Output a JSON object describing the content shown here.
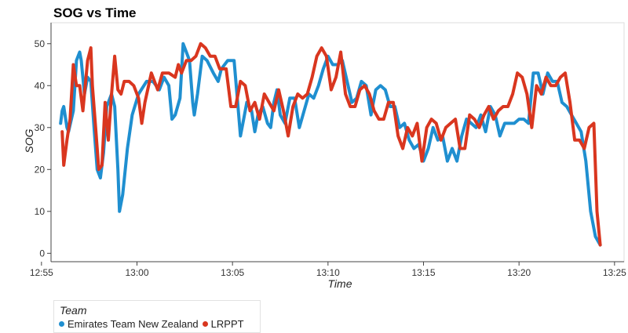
{
  "chart_data": {
    "type": "line",
    "title": "SOG vs Time",
    "xlabel": "Time",
    "ylabel": "SOG",
    "xlim": [
      "12:55:30",
      "13:25:30"
    ],
    "ylim": [
      -2,
      55
    ],
    "x_ticks": [
      "12:55",
      "13:00",
      "13:05",
      "13:10",
      "13:15",
      "13:20",
      "13:25"
    ],
    "y_ticks": [
      0,
      10,
      20,
      30,
      40,
      50
    ],
    "grid": false,
    "legend_title": "Team",
    "legend_position": "bottom-left",
    "series": [
      {
        "name": "Emirates Team New Zealand",
        "color": "#1f8fd0",
        "points": [
          [
            "12:56:00",
            31
          ],
          [
            "12:56:05",
            34
          ],
          [
            "12:56:10",
            35
          ],
          [
            "12:56:20",
            30
          ],
          [
            "12:56:25",
            29
          ],
          [
            "12:56:40",
            34
          ],
          [
            "12:56:50",
            46
          ],
          [
            "12:57:00",
            48
          ],
          [
            "12:57:05",
            46
          ],
          [
            "12:57:15",
            38
          ],
          [
            "12:57:25",
            42
          ],
          [
            "12:57:35",
            41
          ],
          [
            "12:57:45",
            30
          ],
          [
            "12:57:55",
            20
          ],
          [
            "12:58:05",
            18
          ],
          [
            "12:58:15",
            24
          ],
          [
            "12:58:25",
            35
          ],
          [
            "12:58:40",
            38
          ],
          [
            "12:58:50",
            35
          ],
          [
            "12:59:00",
            20
          ],
          [
            "12:59:05",
            10
          ],
          [
            "12:59:15",
            14
          ],
          [
            "12:59:30",
            25
          ],
          [
            "12:59:45",
            33
          ],
          [
            "13:00:05",
            38
          ],
          [
            "13:00:30",
            41
          ],
          [
            "13:00:50",
            41
          ],
          [
            "13:01:10",
            39
          ],
          [
            "13:01:25",
            42
          ],
          [
            "13:01:40",
            40
          ],
          [
            "13:01:50",
            32
          ],
          [
            "13:02:00",
            33
          ],
          [
            "13:02:15",
            37
          ],
          [
            "13:02:25",
            50
          ],
          [
            "13:02:35",
            48
          ],
          [
            "13:02:45",
            46
          ],
          [
            "13:02:55",
            36
          ],
          [
            "13:03:00",
            33
          ],
          [
            "13:03:10",
            38
          ],
          [
            "13:03:25",
            47
          ],
          [
            "13:03:40",
            46
          ],
          [
            "13:04:00",
            43
          ],
          [
            "13:04:15",
            41
          ],
          [
            "13:04:25",
            44
          ],
          [
            "13:04:45",
            46
          ],
          [
            "13:05:05",
            46
          ],
          [
            "13:05:15",
            37
          ],
          [
            "13:05:25",
            28
          ],
          [
            "13:05:35",
            32
          ],
          [
            "13:05:45",
            36
          ],
          [
            "13:06:00",
            34
          ],
          [
            "13:06:10",
            29
          ],
          [
            "13:06:20",
            33
          ],
          [
            "13:06:35",
            35
          ],
          [
            "13:06:50",
            31
          ],
          [
            "13:07:00",
            30
          ],
          [
            "13:07:10",
            36
          ],
          [
            "13:07:20",
            39
          ],
          [
            "13:07:30",
            33
          ],
          [
            "13:07:45",
            31
          ],
          [
            "13:08:00",
            37
          ],
          [
            "13:08:15",
            37
          ],
          [
            "13:08:30",
            30
          ],
          [
            "13:08:45",
            34
          ],
          [
            "13:09:00",
            38
          ],
          [
            "13:09:15",
            37
          ],
          [
            "13:09:30",
            40
          ],
          [
            "13:09:45",
            44
          ],
          [
            "13:10:00",
            47
          ],
          [
            "13:10:15",
            45
          ],
          [
            "13:10:30",
            45
          ],
          [
            "13:10:45",
            46
          ],
          [
            "13:11:00",
            41
          ],
          [
            "13:11:15",
            36
          ],
          [
            "13:11:30",
            37
          ],
          [
            "13:11:45",
            41
          ],
          [
            "13:12:00",
            40
          ],
          [
            "13:12:15",
            33
          ],
          [
            "13:12:30",
            39
          ],
          [
            "13:12:45",
            40
          ],
          [
            "13:13:00",
            39
          ],
          [
            "13:13:15",
            35
          ],
          [
            "13:13:30",
            35
          ],
          [
            "13:13:45",
            30
          ],
          [
            "13:14:00",
            31
          ],
          [
            "13:14:15",
            27
          ],
          [
            "13:14:30",
            25
          ],
          [
            "13:14:45",
            26
          ],
          [
            "13:15:00",
            22
          ],
          [
            "13:15:15",
            25
          ],
          [
            "13:15:30",
            30
          ],
          [
            "13:15:45",
            27
          ],
          [
            "13:16:00",
            28
          ],
          [
            "13:16:15",
            22
          ],
          [
            "13:16:30",
            25
          ],
          [
            "13:16:45",
            22
          ],
          [
            "13:17:00",
            28
          ],
          [
            "13:17:15",
            32
          ],
          [
            "13:17:30",
            31
          ],
          [
            "13:17:45",
            30
          ],
          [
            "13:18:00",
            33
          ],
          [
            "13:18:15",
            29
          ],
          [
            "13:18:30",
            35
          ],
          [
            "13:18:45",
            33
          ],
          [
            "13:19:00",
            28
          ],
          [
            "13:19:15",
            31
          ],
          [
            "13:19:30",
            31
          ],
          [
            "13:19:45",
            31
          ],
          [
            "13:20:00",
            32
          ],
          [
            "13:20:15",
            32
          ],
          [
            "13:20:30",
            31
          ],
          [
            "13:20:45",
            43
          ],
          [
            "13:21:00",
            43
          ],
          [
            "13:21:15",
            38
          ],
          [
            "13:21:30",
            43
          ],
          [
            "13:21:45",
            41
          ],
          [
            "13:22:00",
            41
          ],
          [
            "13:22:15",
            36
          ],
          [
            "13:22:30",
            35
          ],
          [
            "13:22:45",
            33
          ],
          [
            "13:23:00",
            31
          ],
          [
            "13:23:15",
            29
          ],
          [
            "13:23:30",
            22
          ],
          [
            "13:23:45",
            10
          ],
          [
            "13:24:00",
            4
          ],
          [
            "13:24:15",
            2
          ]
        ]
      },
      {
        "name": "LRPPT",
        "color": "#d9361f",
        "points": [
          [
            "12:56:05",
            29
          ],
          [
            "12:56:10",
            21
          ],
          [
            "12:56:20",
            27
          ],
          [
            "12:56:30",
            32
          ],
          [
            "12:56:40",
            45
          ],
          [
            "12:56:50",
            40
          ],
          [
            "12:57:00",
            40
          ],
          [
            "12:57:10",
            34
          ],
          [
            "12:57:25",
            46
          ],
          [
            "12:57:35",
            49
          ],
          [
            "12:57:40",
            40
          ],
          [
            "12:57:50",
            30
          ],
          [
            "12:58:00",
            20
          ],
          [
            "12:58:10",
            21
          ],
          [
            "12:58:20",
            36
          ],
          [
            "12:58:30",
            27
          ],
          [
            "12:58:40",
            38
          ],
          [
            "12:58:50",
            47
          ],
          [
            "12:59:00",
            39
          ],
          [
            "12:59:10",
            38
          ],
          [
            "12:59:20",
            41
          ],
          [
            "12:59:35",
            41
          ],
          [
            "12:59:50",
            40
          ],
          [
            "13:00:05",
            37
          ],
          [
            "13:00:15",
            31
          ],
          [
            "13:00:25",
            36
          ],
          [
            "13:00:45",
            43
          ],
          [
            "13:01:05",
            39
          ],
          [
            "13:01:20",
            43
          ],
          [
            "13:01:40",
            43
          ],
          [
            "13:02:00",
            42
          ],
          [
            "13:02:10",
            45
          ],
          [
            "13:02:20",
            43
          ],
          [
            "13:02:35",
            46
          ],
          [
            "13:02:50",
            46
          ],
          [
            "13:03:05",
            47
          ],
          [
            "13:03:20",
            50
          ],
          [
            "13:03:35",
            49
          ],
          [
            "13:03:50",
            47
          ],
          [
            "13:04:05",
            47
          ],
          [
            "13:04:20",
            44
          ],
          [
            "13:04:40",
            44
          ],
          [
            "13:04:55",
            35
          ],
          [
            "13:05:10",
            35
          ],
          [
            "13:05:25",
            41
          ],
          [
            "13:05:40",
            40
          ],
          [
            "13:05:55",
            34
          ],
          [
            "13:06:10",
            36
          ],
          [
            "13:06:25",
            32
          ],
          [
            "13:06:40",
            38
          ],
          [
            "13:06:55",
            36
          ],
          [
            "13:07:10",
            34
          ],
          [
            "13:07:25",
            39
          ],
          [
            "13:07:40",
            34
          ],
          [
            "13:07:55",
            28
          ],
          [
            "13:08:10",
            35
          ],
          [
            "13:08:25",
            38
          ],
          [
            "13:08:40",
            37
          ],
          [
            "13:08:55",
            38
          ],
          [
            "13:09:10",
            42
          ],
          [
            "13:09:25",
            47
          ],
          [
            "13:09:40",
            49
          ],
          [
            "13:09:55",
            47
          ],
          [
            "13:10:10",
            39
          ],
          [
            "13:10:25",
            42
          ],
          [
            "13:10:40",
            48
          ],
          [
            "13:10:55",
            38
          ],
          [
            "13:11:10",
            35
          ],
          [
            "13:11:25",
            35
          ],
          [
            "13:11:40",
            39
          ],
          [
            "13:11:55",
            40
          ],
          [
            "13:12:10",
            38
          ],
          [
            "13:12:25",
            34
          ],
          [
            "13:12:40",
            32
          ],
          [
            "13:12:55",
            32
          ],
          [
            "13:13:10",
            36
          ],
          [
            "13:13:25",
            36
          ],
          [
            "13:13:40",
            28
          ],
          [
            "13:13:55",
            25
          ],
          [
            "13:14:10",
            30
          ],
          [
            "13:14:25",
            28
          ],
          [
            "13:14:40",
            31
          ],
          [
            "13:14:55",
            22
          ],
          [
            "13:15:10",
            30
          ],
          [
            "13:15:25",
            32
          ],
          [
            "13:15:40",
            31
          ],
          [
            "13:15:55",
            27
          ],
          [
            "13:16:10",
            30
          ],
          [
            "13:16:25",
            31
          ],
          [
            "13:16:40",
            32
          ],
          [
            "13:16:55",
            25
          ],
          [
            "13:17:10",
            25
          ],
          [
            "13:17:25",
            33
          ],
          [
            "13:17:40",
            32
          ],
          [
            "13:17:55",
            30
          ],
          [
            "13:18:10",
            33
          ],
          [
            "13:18:25",
            35
          ],
          [
            "13:18:40",
            32
          ],
          [
            "13:18:55",
            34
          ],
          [
            "13:19:10",
            35
          ],
          [
            "13:19:25",
            35
          ],
          [
            "13:19:40",
            38
          ],
          [
            "13:19:55",
            43
          ],
          [
            "13:20:10",
            42
          ],
          [
            "13:20:25",
            38
          ],
          [
            "13:20:40",
            30
          ],
          [
            "13:20:55",
            40
          ],
          [
            "13:21:10",
            38
          ],
          [
            "13:21:25",
            42
          ],
          [
            "13:21:40",
            40
          ],
          [
            "13:21:55",
            40
          ],
          [
            "13:22:10",
            42
          ],
          [
            "13:22:25",
            43
          ],
          [
            "13:22:40",
            36
          ],
          [
            "13:22:55",
            27
          ],
          [
            "13:23:10",
            27
          ],
          [
            "13:23:25",
            25
          ],
          [
            "13:23:40",
            30
          ],
          [
            "13:23:55",
            31
          ],
          [
            "13:24:05",
            10
          ],
          [
            "13:24:15",
            2
          ]
        ]
      }
    ]
  }
}
